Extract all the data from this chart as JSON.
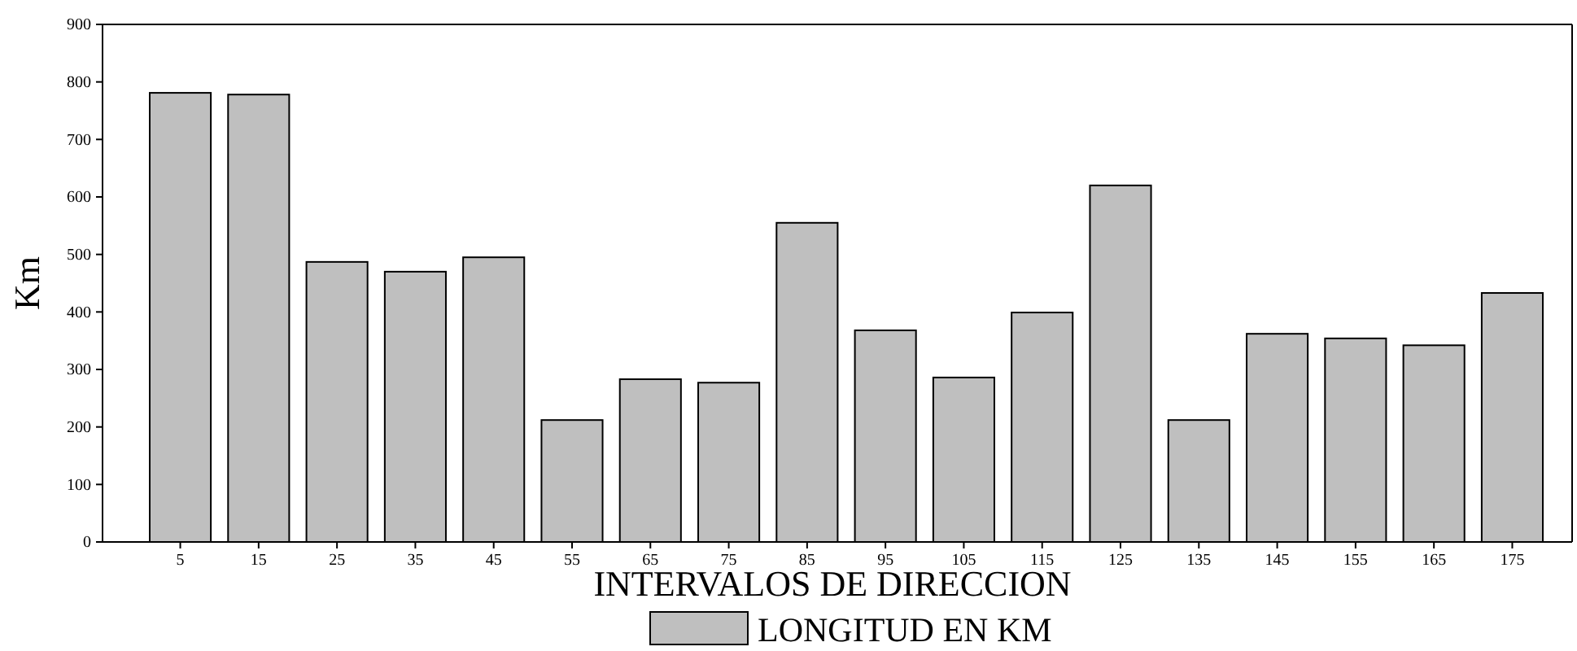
{
  "chart_data": {
    "type": "bar",
    "xlabel": "INTERVALOS DE DIRECCION",
    "ylabel": "Km",
    "categories": [
      "5",
      "15",
      "25",
      "35",
      "45",
      "55",
      "65",
      "75",
      "85",
      "95",
      "105",
      "115",
      "125",
      "135",
      "145",
      "155",
      "165",
      "175"
    ],
    "series": [
      {
        "name": "LONGITUD EN KM",
        "color": "#bfbfbf",
        "values": [
          781,
          778,
          487,
          470,
          495,
          212,
          283,
          277,
          555,
          368,
          286,
          399,
          620,
          212,
          362,
          354,
          342,
          433
        ]
      }
    ],
    "ylim": [
      0,
      900
    ],
    "yticks": [
      0,
      100,
      200,
      300,
      400,
      500,
      600,
      700,
      800,
      900
    ],
    "grid": false,
    "legend": "bottom"
  }
}
